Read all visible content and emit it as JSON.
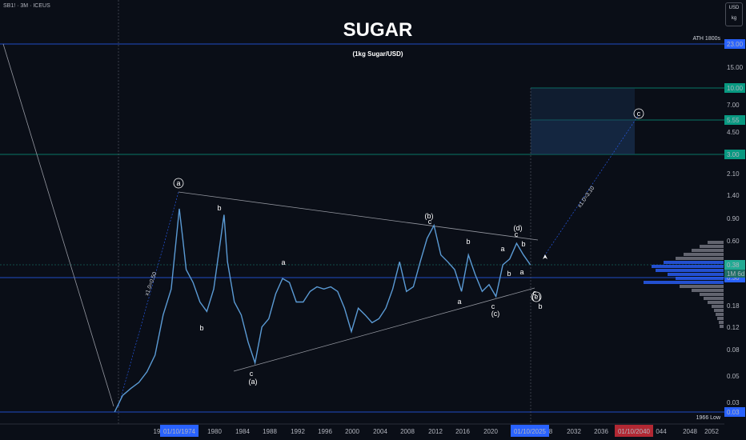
{
  "header": {
    "symbol": "SB1! · 3M · ICEUS",
    "currency_top": "USD",
    "currency_bottom": "kg"
  },
  "chart_data": {
    "type": "line",
    "title": "SUGAR",
    "subtitle": "(1kg Sugar/USD)",
    "log_scale": true,
    "y_ticks": [
      "23.00",
      "15.00",
      "10.00",
      "7.00",
      "5.55",
      "4.50",
      "3.00",
      "2.10",
      "1.40",
      "0.90",
      "0.60",
      "0.38",
      "0.30",
      "0.18",
      "0.12",
      "0.08",
      "0.05",
      "0.03",
      "0.03"
    ],
    "x_ticks": [
      "19",
      "01/10/1974",
      "1980",
      "1984",
      "1988",
      "1992",
      "1996",
      "2000",
      "2004",
      "2008",
      "2012",
      "2016",
      "2020",
      "01/10/2025",
      "8",
      "2032",
      "2036",
      "01/10/2040",
      "044",
      "2048",
      "2052"
    ],
    "price_labels": [
      {
        "text": "23.00",
        "color": "#2962ff"
      },
      {
        "text": "10.00",
        "color": "#089981"
      },
      {
        "text": "5.55",
        "color": "#089981"
      },
      {
        "text": "3.00",
        "color": "#089981"
      },
      {
        "text": "0.38",
        "color": "#22ab94"
      },
      {
        "text": "1M 6d",
        "color": "#22ab94"
      },
      {
        "text": "0.30",
        "color": "#2962ff"
      },
      {
        "text": "0.03",
        "color": "#2962ff"
      }
    ],
    "annotations": {
      "ath": "ATH 1800s",
      "low": "1966 Low",
      "fib1": "x1.0=0.50",
      "fib2": "x1.0=3.10",
      "waves": [
        "a",
        "b",
        "c",
        "(a)",
        "a",
        "b",
        "(b)",
        "c",
        "a",
        "b",
        "c",
        "(c)",
        "a",
        "(d)",
        "c",
        "b",
        "a",
        "b",
        "c",
        "(e)",
        "b",
        "c"
      ]
    },
    "series": [
      {
        "x": [
          1966,
          1967,
          1968,
          1969,
          1970,
          1971,
          1972,
          1973,
          1974.0,
          1974.5,
          1975,
          1976,
          1977,
          1978,
          1979,
          1980.5,
          1981,
          1982,
          1983,
          1984,
          1985,
          1986,
          1987,
          1988,
          1989,
          1990,
          1991,
          1992,
          1993,
          1994,
          1995,
          1996,
          1997,
          1998,
          1999,
          2000,
          2001,
          2002,
          2003,
          2004,
          2005,
          2006,
          2007,
          2008,
          2009,
          2010,
          2011,
          2012,
          2013,
          2014,
          2015,
          2016,
          2017,
          2018,
          2019,
          2020,
          2021,
          2022,
          2023,
          2024,
          2025
        ],
        "values": [
          0.03,
          0.04,
          0.045,
          0.05,
          0.06,
          0.08,
          0.16,
          0.25,
          1.0,
          0.6,
          0.35,
          0.28,
          0.2,
          0.17,
          0.25,
          0.9,
          0.4,
          0.2,
          0.16,
          0.1,
          0.07,
          0.13,
          0.15,
          0.23,
          0.3,
          0.28,
          0.2,
          0.2,
          0.24,
          0.26,
          0.25,
          0.26,
          0.24,
          0.18,
          0.12,
          0.18,
          0.16,
          0.14,
          0.15,
          0.18,
          0.25,
          0.4,
          0.24,
          0.26,
          0.4,
          0.6,
          0.75,
          0.45,
          0.4,
          0.35,
          0.24,
          0.45,
          0.32,
          0.24,
          0.27,
          0.22,
          0.38,
          0.42,
          0.55,
          0.45,
          0.38
        ]
      }
    ]
  }
}
